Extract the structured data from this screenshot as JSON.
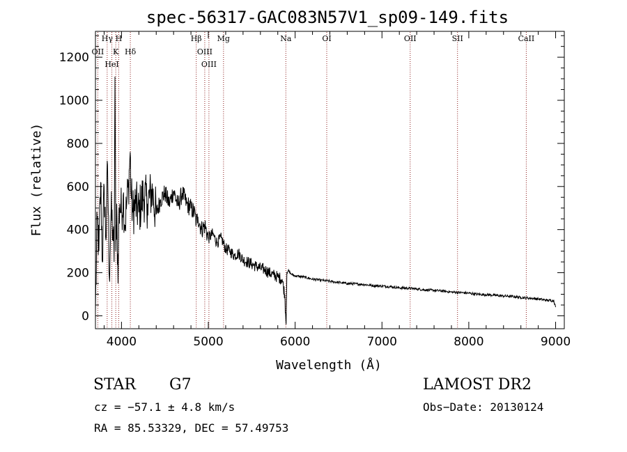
{
  "chart_data": {
    "type": "line",
    "title": "spec-56317-GAC083N57V1_sp09-149.fits",
    "xlabel": "Wavelength (Å)",
    "ylabel": "Flux (relative)",
    "xlim": [
      3700,
      9100
    ],
    "ylim": [
      -60,
      1320
    ],
    "x_ticks": [
      4000,
      5000,
      6000,
      7000,
      8000,
      9000
    ],
    "y_ticks": [
      0,
      200,
      400,
      600,
      800,
      1000,
      1200
    ],
    "grid": false,
    "line_color": "#000000",
    "marker_color": "#8b1a1a",
    "spectrum": {
      "x": [
        3700,
        3720,
        3740,
        3760,
        3780,
        3800,
        3820,
        3840,
        3860,
        3880,
        3900,
        3915,
        3925,
        3934,
        3945,
        3960,
        3968,
        3980,
        4000,
        4020,
        4040,
        4060,
        4080,
        4100,
        4110,
        4130,
        4160,
        4200,
        4250,
        4300,
        4350,
        4400,
        4450,
        4500,
        4550,
        4600,
        4650,
        4700,
        4750,
        4800,
        4850,
        4861,
        4880,
        4920,
        4960,
        5000,
        5050,
        5100,
        5150,
        5200,
        5250,
        5300,
        5350,
        5400,
        5450,
        5500,
        5550,
        5600,
        5650,
        5700,
        5750,
        5800,
        5850,
        5880,
        5890,
        5896,
        5905,
        5920,
        5950,
        6000,
        6100,
        6200,
        6300,
        6400,
        6500,
        6600,
        6700,
        6800,
        6900,
        7000,
        7100,
        7200,
        7300,
        7400,
        7500,
        7600,
        7700,
        7800,
        7900,
        8000,
        8100,
        8200,
        8300,
        8400,
        8500,
        8600,
        8700,
        8800,
        8900,
        8980,
        9000
      ],
      "y": [
        20,
        450,
        300,
        620,
        250,
        600,
        350,
        700,
        180,
        480,
        400,
        250,
        1110,
        300,
        520,
        150,
        420,
        520,
        480,
        560,
        420,
        520,
        600,
        760,
        560,
        480,
        520,
        480,
        560,
        520,
        580,
        470,
        540,
        570,
        520,
        580,
        510,
        570,
        520,
        500,
        470,
        430,
        460,
        400,
        420,
        360,
        380,
        340,
        360,
        310,
        300,
        280,
        290,
        260,
        250,
        240,
        230,
        220,
        215,
        200,
        190,
        180,
        170,
        100,
        10,
        -40,
        200,
        210,
        195,
        185,
        180,
        170,
        165,
        160,
        155,
        150,
        148,
        145,
        140,
        138,
        135,
        130,
        128,
        125,
        120,
        118,
        115,
        110,
        108,
        105,
        100,
        98,
        95,
        92,
        90,
        85,
        82,
        78,
        72,
        70,
        40
      ]
    },
    "line_markers": [
      {
        "label": "Hγ",
        "x": 3835
      },
      {
        "label": "OII",
        "x": 3727
      },
      {
        "label": "HeI",
        "x": 3889
      },
      {
        "label": "H",
        "x": 3968
      },
      {
        "label": "K",
        "x": 3934
      },
      {
        "label": "Hδ",
        "x": 4102
      },
      {
        "label": "Hβ",
        "x": 4861
      },
      {
        "label": "OIII",
        "x": 4959
      },
      {
        "label": "OIII",
        "x": 5007
      },
      {
        "label": "Mg",
        "x": 5175
      },
      {
        "label": "Na",
        "x": 5893
      },
      {
        "label": "OI",
        "x": 6364
      },
      {
        "label": "OII",
        "x": 7325
      },
      {
        "label": "SII",
        "x": 7870
      },
      {
        "label": "CaII",
        "x": 8662
      }
    ]
  },
  "info": {
    "object_class": "STAR",
    "subclass": "G7",
    "survey": "LAMOST DR2",
    "cz": "cz = −57.1 ± 4.8 km/s",
    "obs_date": "Obs−Date: 20130124",
    "coords": "RA =  85.53329, DEC =  57.49753"
  }
}
